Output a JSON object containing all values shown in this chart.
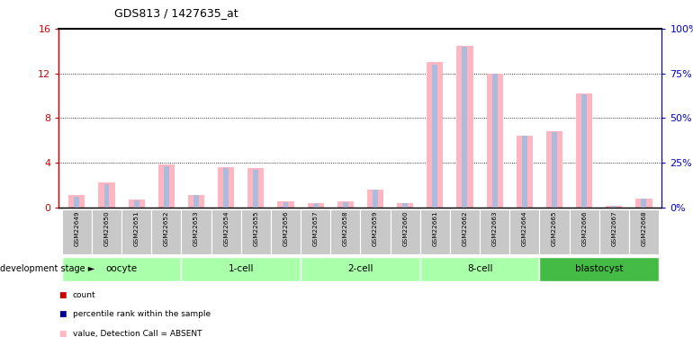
{
  "title": "GDS813 / 1427635_at",
  "samples": [
    "GSM22649",
    "GSM22650",
    "GSM22651",
    "GSM22652",
    "GSM22653",
    "GSM22654",
    "GSM22655",
    "GSM22656",
    "GSM22657",
    "GSM22658",
    "GSM22659",
    "GSM22660",
    "GSM22661",
    "GSM22662",
    "GSM22663",
    "GSM22664",
    "GSM22665",
    "GSM22666",
    "GSM22667",
    "GSM22668"
  ],
  "value_absent": [
    1.1,
    2.2,
    0.7,
    3.8,
    1.1,
    3.6,
    3.5,
    0.55,
    0.35,
    0.5,
    1.6,
    0.4,
    13.0,
    14.5,
    12.0,
    6.4,
    6.8,
    10.2,
    0.1,
    0.75
  ],
  "rank_absent_pct": [
    6,
    13,
    4,
    23,
    7,
    22,
    21,
    3,
    2,
    3,
    10,
    2.5,
    80,
    90,
    75,
    40,
    42,
    63,
    0.6,
    4.6
  ],
  "stage_groups": [
    {
      "label": "oocyte",
      "start": 0,
      "end": 4,
      "color": "#aaffaa"
    },
    {
      "label": "1-cell",
      "start": 4,
      "end": 8,
      "color": "#aaffaa"
    },
    {
      "label": "2-cell",
      "start": 8,
      "end": 12,
      "color": "#aaffaa"
    },
    {
      "label": "8-cell",
      "start": 12,
      "end": 16,
      "color": "#aaffaa"
    },
    {
      "label": "blastocyst",
      "start": 16,
      "end": 20,
      "color": "#44bb44"
    }
  ],
  "ylim_left": [
    0,
    16
  ],
  "ylim_right": [
    0,
    100
  ],
  "yticks_left": [
    0,
    4,
    8,
    12,
    16
  ],
  "yticks_right": [
    0,
    25,
    50,
    75,
    100
  ],
  "value_absent_color": "#FFB6C1",
  "rank_absent_color": "#aabbdd",
  "count_color": "#CC0000",
  "percentile_color": "#000099",
  "bg_color": "#ffffff",
  "left_yaxis_color": "#CC0000",
  "right_yaxis_color": "#0000CC",
  "sample_box_color": "#C8C8C8",
  "grid_linestyle": "dotted"
}
